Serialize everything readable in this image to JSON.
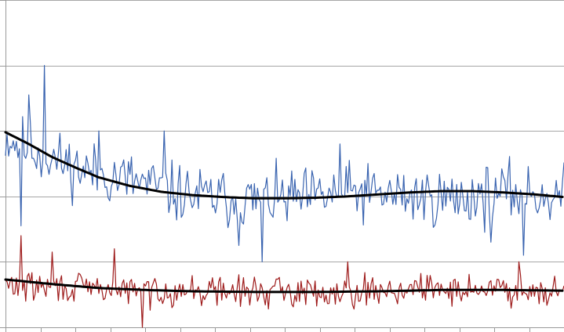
{
  "chart_data": {
    "type": "line",
    "title": "",
    "xlabel": "",
    "ylabel": "",
    "grid": true,
    "legend": "none",
    "x_range": [
      0,
      359
    ],
    "ylim": [
      0,
      5
    ],
    "y_gridlines": [
      0,
      1,
      2,
      3,
      4,
      5
    ],
    "x_tick_count": 16,
    "colors": {
      "blue_series": "#3a64b0",
      "red_series": "#9e1b1b",
      "trend": "#000000",
      "grid": "#a6a6a6"
    },
    "series": [
      {
        "color_key": "blue_series",
        "base": [
          [
            0,
            2.9
          ],
          [
            25,
            2.62
          ],
          [
            50,
            2.4
          ],
          [
            80,
            2.25
          ],
          [
            110,
            2.05
          ],
          [
            130,
            1.98
          ],
          [
            160,
            1.94
          ],
          [
            200,
            1.98
          ],
          [
            220,
            2.06
          ],
          [
            250,
            2.02
          ],
          [
            290,
            1.96
          ],
          [
            320,
            2.06
          ],
          [
            359,
            2.0
          ]
        ],
        "amplitude": 0.33,
        "seed": 11,
        "extremes": [
          [
            25,
            4.0
          ],
          [
            15,
            3.55
          ],
          [
            10,
            1.55
          ],
          [
            150,
            1.25
          ],
          [
            165,
            1.0
          ],
          [
            333,
            1.1
          ],
          [
            312,
            1.3
          ],
          [
            102,
            3.0
          ],
          [
            60,
            3.0
          ],
          [
            215,
            2.8
          ]
        ]
      },
      {
        "color_key": "red_series",
        "base": [
          [
            0,
            0.64
          ],
          [
            40,
            0.6
          ],
          [
            90,
            0.56
          ],
          [
            200,
            0.54
          ],
          [
            260,
            0.58
          ],
          [
            359,
            0.58
          ]
        ],
        "amplitude": 0.17,
        "seed": 29,
        "extremes": [
          [
            10,
            1.4
          ],
          [
            30,
            1.15
          ],
          [
            88,
            0.0
          ],
          [
            70,
            1.2
          ],
          [
            330,
            1.0
          ],
          [
            220,
            1.0
          ]
        ]
      }
    ],
    "trends": [
      {
        "points": [
          [
            0,
            2.98
          ],
          [
            15,
            2.8
          ],
          [
            30,
            2.6
          ],
          [
            45,
            2.44
          ],
          [
            60,
            2.29
          ],
          [
            80,
            2.16
          ],
          [
            100,
            2.07
          ],
          [
            120,
            2.02
          ],
          [
            140,
            1.99
          ],
          [
            160,
            1.97
          ],
          [
            180,
            1.97
          ],
          [
            200,
            1.98
          ],
          [
            220,
            2.0
          ],
          [
            240,
            2.03
          ],
          [
            260,
            2.06
          ],
          [
            280,
            2.08
          ],
          [
            300,
            2.08
          ],
          [
            320,
            2.06
          ],
          [
            340,
            2.03
          ],
          [
            359,
            1.99
          ]
        ]
      },
      {
        "points": [
          [
            0,
            0.73
          ],
          [
            30,
            0.66
          ],
          [
            60,
            0.6
          ],
          [
            90,
            0.57
          ],
          [
            120,
            0.55
          ],
          [
            160,
            0.54
          ],
          [
            200,
            0.54
          ],
          [
            240,
            0.55
          ],
          [
            280,
            0.57
          ],
          [
            320,
            0.57
          ],
          [
            359,
            0.56
          ]
        ]
      }
    ]
  }
}
